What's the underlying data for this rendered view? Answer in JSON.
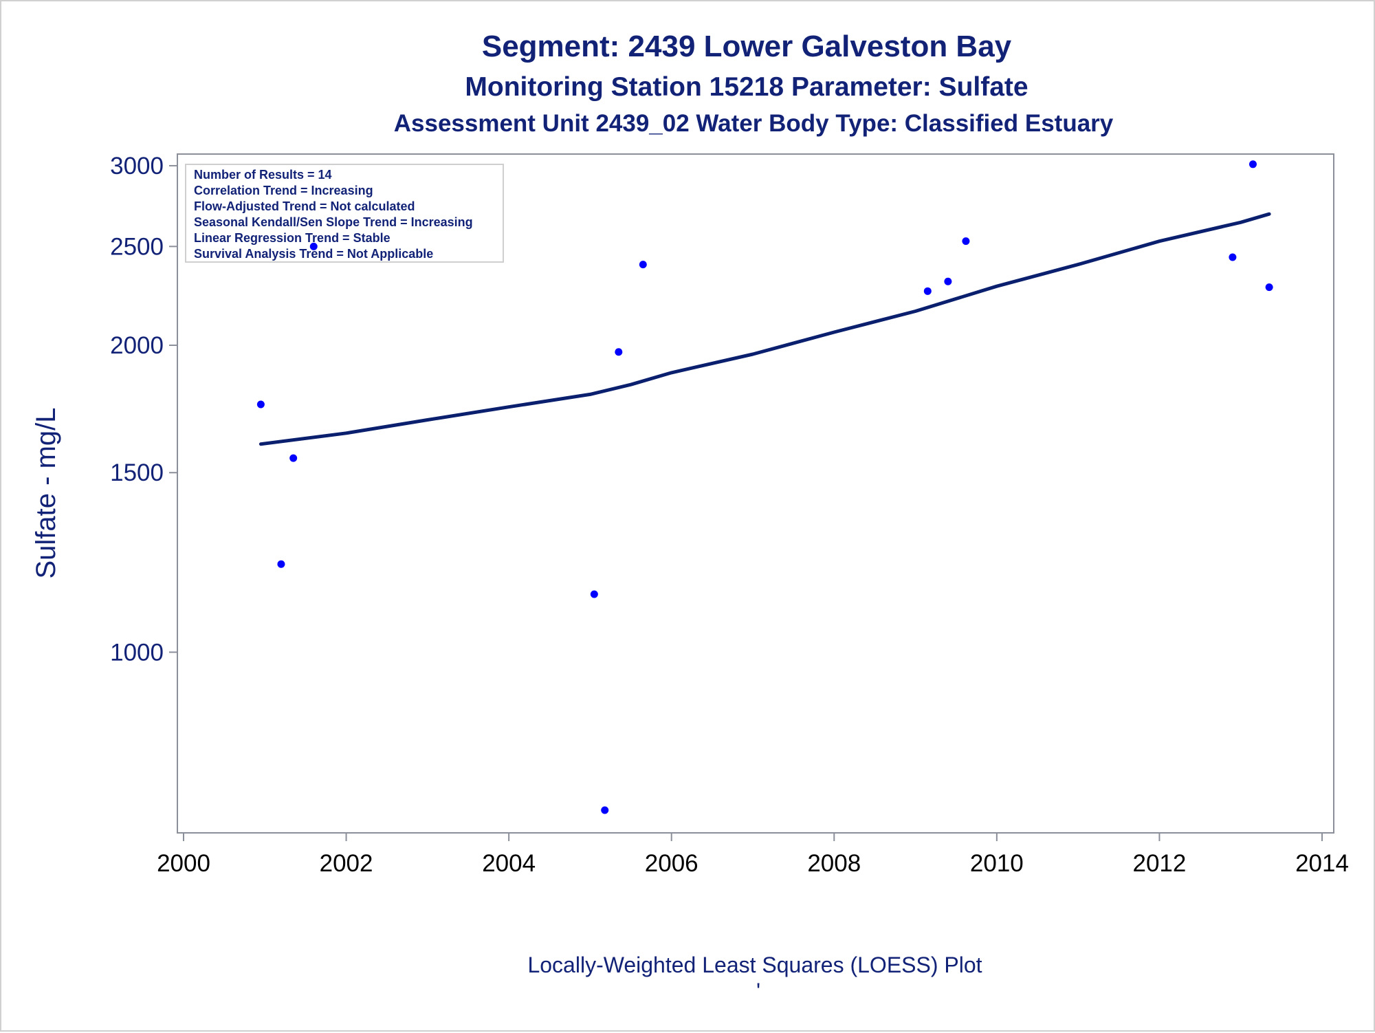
{
  "chart_data": {
    "type": "scatter",
    "title": "Segment: 2439  Lower Galveston Bay",
    "subtitle": "Monitoring Station 15218 Parameter: Sulfate",
    "subtitle2": "Assessment Unit 2439_02   Water Body Type: Classified Estuary",
    "xlabel": "Locally-Weighted Least Squares (LOESS) Plot",
    "footnote": "'",
    "ylabel": "Sulfate - mg/L",
    "xlim": [
      2000,
      2014
    ],
    "ylim": [
      665,
      3080
    ],
    "yscale": "log",
    "x_ticks": [
      "2000",
      "2002",
      "2004",
      "2006",
      "2008",
      "2010",
      "2012",
      "2014"
    ],
    "y_ticks": [
      "1000",
      "1500",
      "2000",
      "2500",
      "3000"
    ],
    "colors": {
      "points": "#0000ff",
      "trend": "#0a1f6e",
      "text": "#112277"
    },
    "stats_box": [
      "Number of Results = 14",
      "Correlation Trend = Increasing",
      "Flow-Adjusted Trend = Not calculated",
      "Seasonal Kendall/Sen Slope Trend = Increasing",
      "Linear Regression Trend = Stable",
      "Survival Analysis Trend = Not Applicable"
    ],
    "points": [
      {
        "x": 2000.95,
        "y": 1750
      },
      {
        "x": 2001.2,
        "y": 1220
      },
      {
        "x": 2001.35,
        "y": 1550
      },
      {
        "x": 2001.6,
        "y": 2500
      },
      {
        "x": 2005.05,
        "y": 1140
      },
      {
        "x": 2005.18,
        "y": 700
      },
      {
        "x": 2005.35,
        "y": 1970
      },
      {
        "x": 2005.65,
        "y": 2400
      },
      {
        "x": 2009.15,
        "y": 2260
      },
      {
        "x": 2009.4,
        "y": 2310
      },
      {
        "x": 2009.62,
        "y": 2530
      },
      {
        "x": 2012.9,
        "y": 2440
      },
      {
        "x": 2013.15,
        "y": 3010
      },
      {
        "x": 2013.35,
        "y": 2280
      }
    ],
    "series": [
      {
        "type": "line",
        "x": [
          2000.95,
          2002,
          2003,
          2004,
          2005,
          2005.5,
          2006,
          2007,
          2008,
          2009,
          2010,
          2011,
          2012,
          2013,
          2013.35
        ],
        "y": [
          1600,
          1640,
          1690,
          1740,
          1790,
          1830,
          1880,
          1960,
          2060,
          2160,
          2285,
          2400,
          2530,
          2640,
          2690
        ]
      }
    ]
  }
}
